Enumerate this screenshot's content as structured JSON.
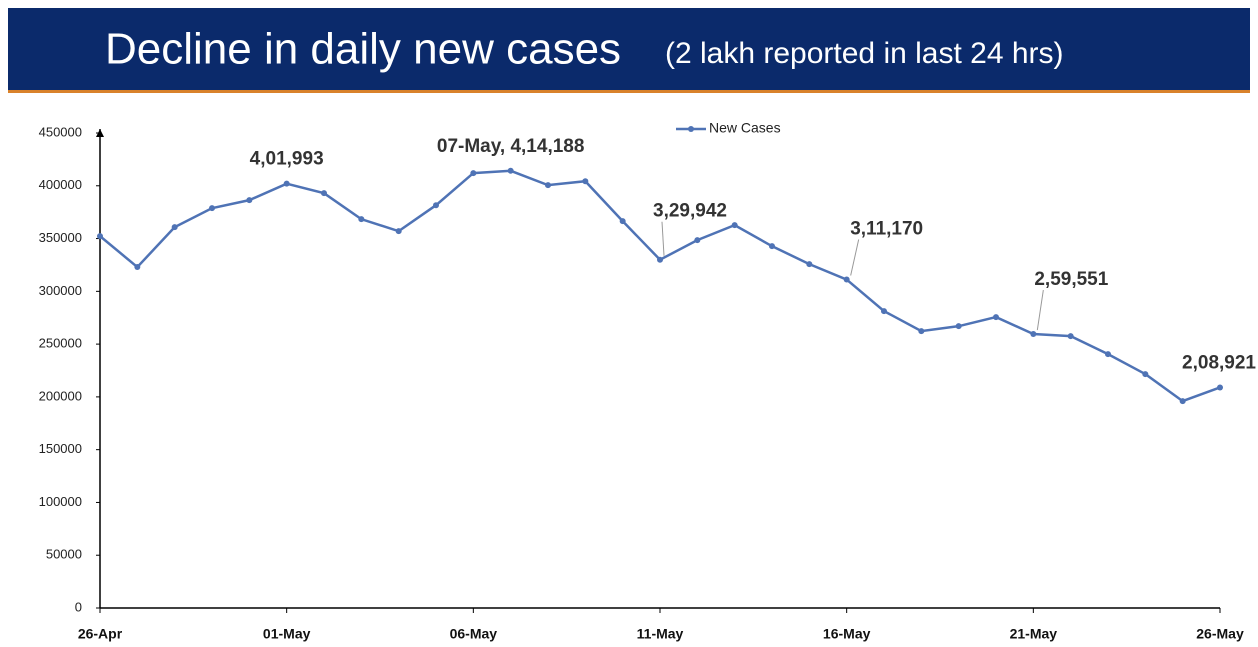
{
  "chart_data": {
    "type": "line",
    "title": "Decline in daily new cases",
    "subtitle": "(2 lakh reported in last 24 hrs)",
    "categories": [
      "26-Apr",
      null,
      null,
      null,
      null,
      "01-May",
      null,
      null,
      null,
      null,
      "06-May",
      null,
      null,
      null,
      null,
      "11-May",
      null,
      null,
      null,
      null,
      "16-May",
      null,
      null,
      null,
      null,
      "21-May",
      null,
      null,
      null,
      null,
      "26-May"
    ],
    "series": [
      {
        "name": "New Cases",
        "color": "#4f73b5",
        "values": [
          352300,
          323000,
          360800,
          378800,
          386400,
          401993,
          393000,
          368400,
          357000,
          381600,
          412000,
          414188,
          400600,
          404300,
          366500,
          329942,
          348500,
          362700,
          342800,
          325800,
          311170,
          281300,
          262300,
          267000,
          275600,
          259551,
          257600,
          240500,
          221600,
          196000,
          208921
        ],
        "value_labels": [
          null,
          null,
          null,
          null,
          null,
          "4,01,993",
          null,
          null,
          null,
          null,
          null,
          "07-May, 4,14,188",
          null,
          null,
          null,
          "3,29,942",
          null,
          null,
          null,
          null,
          "3,11,170",
          null,
          null,
          null,
          null,
          "2,59,551",
          null,
          null,
          null,
          null,
          "2,08,921"
        ]
      }
    ],
    "ylim": [
      0,
      450000
    ],
    "yticks": [
      0,
      50000,
      100000,
      150000,
      200000,
      250000,
      300000,
      350000,
      400000,
      450000
    ],
    "legend": "top"
  }
}
